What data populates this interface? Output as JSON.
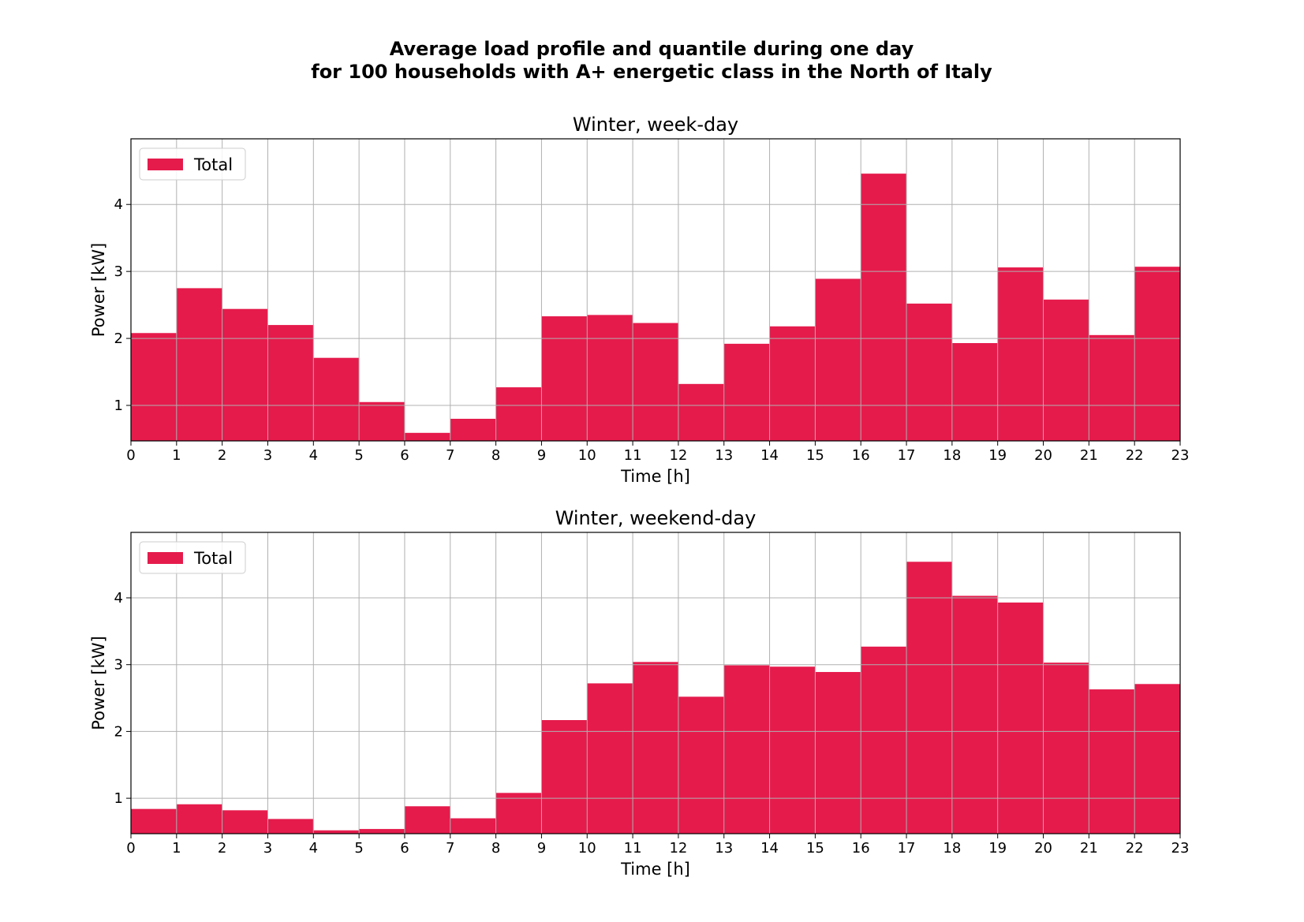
{
  "figure": {
    "title_line1": "Average load profile and quantile during one day",
    "title_line2": "for 100 households with A+ energetic class in the North of Italy"
  },
  "colors": {
    "bar": "#e51b4c",
    "grid": "#b0b0b0",
    "axes": "#000000"
  },
  "chart_data": [
    {
      "type": "bar",
      "title": "Winter, week-day",
      "xlabel": "Time [h]",
      "ylabel": "Power [kW]",
      "xlim": [
        0,
        23
      ],
      "ylim": [
        0.47,
        4.98
      ],
      "xticks": [
        0,
        1,
        2,
        3,
        4,
        5,
        6,
        7,
        8,
        9,
        10,
        11,
        12,
        13,
        14,
        15,
        16,
        17,
        18,
        19,
        20,
        21,
        22,
        23
      ],
      "yticks": [
        1,
        2,
        3,
        4
      ],
      "grid": true,
      "legend": {
        "label": "Total",
        "placement": "top-left"
      },
      "x": [
        0,
        1,
        2,
        3,
        4,
        5,
        6,
        7,
        8,
        9,
        10,
        11,
        12,
        13,
        14,
        15,
        16,
        17,
        18,
        19,
        20,
        21,
        22
      ],
      "values": [
        2.08,
        2.75,
        2.44,
        2.2,
        1.71,
        1.05,
        0.59,
        0.8,
        1.27,
        2.33,
        2.35,
        2.23,
        1.32,
        1.92,
        2.18,
        2.89,
        4.46,
        2.52,
        1.93,
        3.06,
        2.58,
        2.05,
        3.07
      ]
    },
    {
      "type": "bar",
      "title": "Winter, weekend-day",
      "xlabel": "Time [h]",
      "ylabel": "Power [kW]",
      "xlim": [
        0,
        23
      ],
      "ylim": [
        0.47,
        4.98
      ],
      "xticks": [
        0,
        1,
        2,
        3,
        4,
        5,
        6,
        7,
        8,
        9,
        10,
        11,
        12,
        13,
        14,
        15,
        16,
        17,
        18,
        19,
        20,
        21,
        22,
        23
      ],
      "yticks": [
        1,
        2,
        3,
        4
      ],
      "grid": true,
      "legend": {
        "label": "Total",
        "placement": "top-left"
      },
      "x": [
        0,
        1,
        2,
        3,
        4,
        5,
        6,
        7,
        8,
        9,
        10,
        11,
        12,
        13,
        14,
        15,
        16,
        17,
        18,
        19,
        20,
        21,
        22
      ],
      "values": [
        0.84,
        0.91,
        0.82,
        0.69,
        0.52,
        0.54,
        0.88,
        0.7,
        1.08,
        2.17,
        2.72,
        3.04,
        2.52,
        2.99,
        2.97,
        2.89,
        3.27,
        4.54,
        4.03,
        3.93,
        3.03,
        2.63,
        2.71
      ]
    }
  ]
}
